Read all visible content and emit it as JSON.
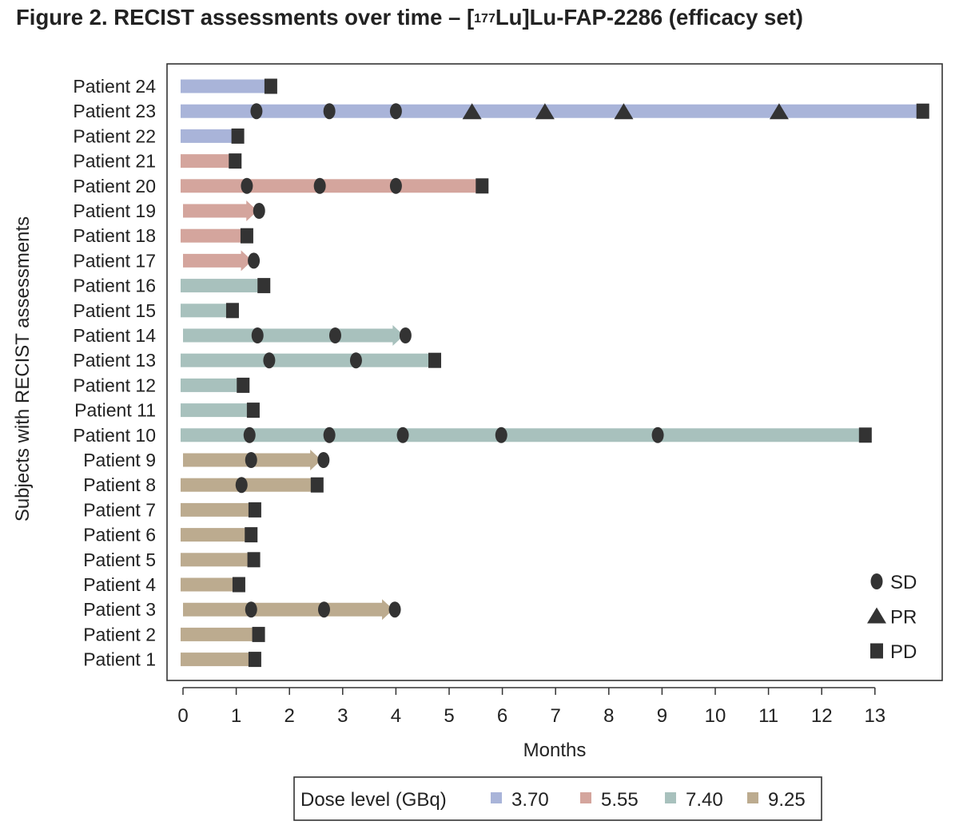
{
  "figure": {
    "title_pre": "Figure 2. RECIST assessments over time – [",
    "title_sup": "177",
    "title_post": "Lu]Lu-FAP-2286 (efficacy set)"
  },
  "chart_data": {
    "type": "swimmer",
    "xlabel": "Months",
    "ylabel": "Subjects with RECIST assessments",
    "xlim": [
      0,
      14
    ],
    "xticks": [
      0,
      1,
      2,
      3,
      4,
      5,
      6,
      7,
      8,
      9,
      10,
      11,
      12,
      13
    ],
    "legend_title": "Dose level (GBq)",
    "dose_colors": {
      "3.70": "#a9b4d9",
      "5.55": "#d4a59d",
      "7.40": "#a8c1bd",
      "9.25": "#bcab8f"
    },
    "dose_legend": [
      {
        "label": "3.70",
        "color": "#a9b4d9"
      },
      {
        "label": "5.55",
        "color": "#d4a59d"
      },
      {
        "label": "7.40",
        "color": "#a8c1bd"
      },
      {
        "label": "9.25",
        "color": "#bcab8f"
      }
    ],
    "response_legend": [
      {
        "label": "SD",
        "shape": "ellipse"
      },
      {
        "label": "PR",
        "shape": "triangle"
      },
      {
        "label": "PD",
        "shape": "square"
      }
    ],
    "marker_color": "#333333",
    "patients": [
      {
        "label": "Patient 24",
        "dose": "3.70",
        "end": 1.6,
        "ongoing": false,
        "SD": [],
        "PR": [],
        "PD": [
          1.65
        ]
      },
      {
        "label": "Patient 23",
        "dose": "3.70",
        "end": 13.9,
        "ongoing": false,
        "SD": [
          1.38,
          2.75,
          4.0
        ],
        "PR": [
          5.43,
          6.8,
          8.28,
          11.2
        ],
        "PD": [
          13.9
        ]
      },
      {
        "label": "Patient 22",
        "dose": "3.70",
        "end": 1.0,
        "ongoing": false,
        "SD": [],
        "PR": [],
        "PD": [
          1.03
        ]
      },
      {
        "label": "Patient 21",
        "dose": "5.55",
        "end": 0.95,
        "ongoing": false,
        "SD": [],
        "PR": [],
        "PD": [
          0.98
        ]
      },
      {
        "label": "Patient 20",
        "dose": "5.55",
        "end": 5.6,
        "ongoing": false,
        "SD": [
          1.2,
          2.57,
          4.0
        ],
        "PR": [],
        "PD": [
          5.62
        ]
      },
      {
        "label": "Patient 19",
        "dose": "5.55",
        "end": 1.4,
        "ongoing": true,
        "SD": [
          1.43
        ],
        "PR": [],
        "PD": []
      },
      {
        "label": "Patient 18",
        "dose": "5.55",
        "end": 1.15,
        "ongoing": false,
        "SD": [],
        "PR": [],
        "PD": [
          1.2
        ]
      },
      {
        "label": "Patient 17",
        "dose": "5.55",
        "end": 1.3,
        "ongoing": true,
        "SD": [
          1.33
        ],
        "PR": [],
        "PD": []
      },
      {
        "label": "Patient 16",
        "dose": "7.40",
        "end": 1.5,
        "ongoing": false,
        "SD": [],
        "PR": [],
        "PD": [
          1.52
        ]
      },
      {
        "label": "Patient 15",
        "dose": "7.40",
        "end": 0.9,
        "ongoing": false,
        "SD": [],
        "PR": [],
        "PD": [
          0.93
        ]
      },
      {
        "label": "Patient 14",
        "dose": "7.40",
        "end": 4.15,
        "ongoing": true,
        "SD": [
          1.4,
          2.86,
          4.18
        ],
        "PR": [],
        "PD": []
      },
      {
        "label": "Patient 13",
        "dose": "7.40",
        "end": 4.7,
        "ongoing": false,
        "SD": [
          1.62,
          3.25
        ],
        "PR": [],
        "PD": [
          4.73
        ]
      },
      {
        "label": "Patient 12",
        "dose": "7.40",
        "end": 1.1,
        "ongoing": false,
        "SD": [],
        "PR": [],
        "PD": [
          1.13
        ]
      },
      {
        "label": "Patient 11",
        "dose": "7.40",
        "end": 1.3,
        "ongoing": false,
        "SD": [],
        "PR": [],
        "PD": [
          1.32
        ]
      },
      {
        "label": "Patient 10",
        "dose": "7.40",
        "end": 12.8,
        "ongoing": false,
        "SD": [
          1.25,
          2.75,
          4.13,
          5.98,
          8.92
        ],
        "PR": [],
        "PD": [
          12.82
        ]
      },
      {
        "label": "Patient 9",
        "dose": "9.25",
        "end": 2.6,
        "ongoing": true,
        "SD": [
          1.28,
          2.64
        ],
        "PR": [],
        "PD": []
      },
      {
        "label": "Patient 8",
        "dose": "9.25",
        "end": 2.5,
        "ongoing": false,
        "SD": [
          1.1
        ],
        "PR": [],
        "PD": [
          2.52
        ]
      },
      {
        "label": "Patient 7",
        "dose": "9.25",
        "end": 1.33,
        "ongoing": false,
        "SD": [],
        "PR": [],
        "PD": [
          1.35
        ]
      },
      {
        "label": "Patient 6",
        "dose": "9.25",
        "end": 1.25,
        "ongoing": false,
        "SD": [],
        "PR": [],
        "PD": [
          1.28
        ]
      },
      {
        "label": "Patient 5",
        "dose": "9.25",
        "end": 1.3,
        "ongoing": false,
        "SD": [],
        "PR": [],
        "PD": [
          1.33
        ]
      },
      {
        "label": "Patient 4",
        "dose": "9.25",
        "end": 1.0,
        "ongoing": false,
        "SD": [],
        "PR": [],
        "PD": [
          1.05
        ]
      },
      {
        "label": "Patient 3",
        "dose": "9.25",
        "end": 3.95,
        "ongoing": true,
        "SD": [
          1.28,
          2.65,
          3.98
        ],
        "PR": [],
        "PD": []
      },
      {
        "label": "Patient 2",
        "dose": "9.25",
        "end": 1.4,
        "ongoing": false,
        "SD": [],
        "PR": [],
        "PD": [
          1.42
        ]
      },
      {
        "label": "Patient 1",
        "dose": "9.25",
        "end": 1.33,
        "ongoing": false,
        "SD": [],
        "PR": [],
        "PD": [
          1.35
        ]
      }
    ]
  }
}
